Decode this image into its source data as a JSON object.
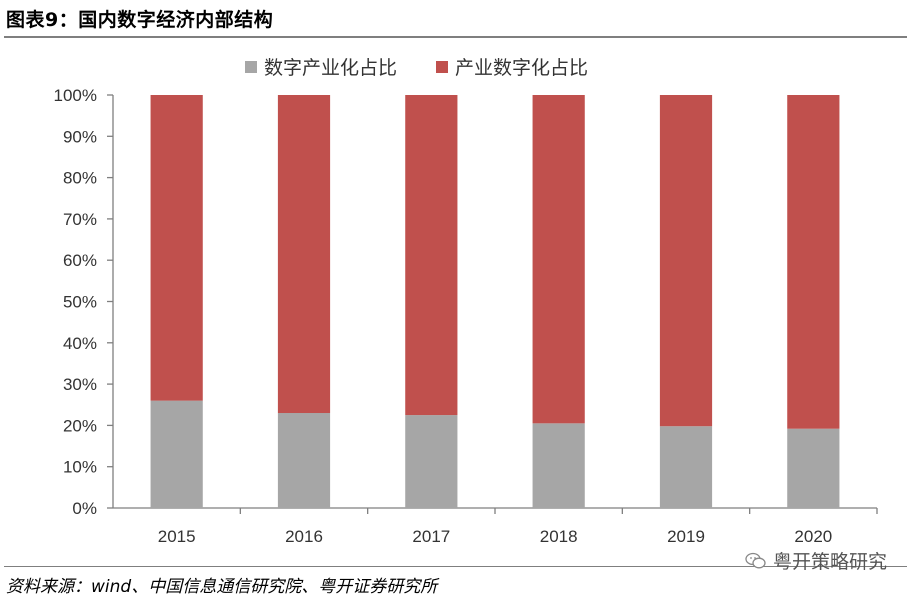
{
  "header": {
    "title": "图表9：国内数字经济内部结构"
  },
  "footer": {
    "source": "资料来源：wind、中国信息通信研究院、粤开证券研究所",
    "watermark": "粤开策略研究"
  },
  "chart_data": {
    "type": "bar",
    "stacked": true,
    "categories": [
      "2015",
      "2016",
      "2017",
      "2018",
      "2019",
      "2020"
    ],
    "series": [
      {
        "name": "数字产业化占比",
        "color": "#a6a6a6",
        "values": [
          0.26,
          0.23,
          0.225,
          0.205,
          0.198,
          0.192
        ]
      },
      {
        "name": "产业数字化占比",
        "color": "#c0504d",
        "values": [
          0.74,
          0.77,
          0.775,
          0.795,
          0.802,
          0.808
        ]
      }
    ],
    "y_ticks": [
      "0%",
      "10%",
      "20%",
      "30%",
      "40%",
      "50%",
      "60%",
      "70%",
      "80%",
      "90%",
      "100%"
    ],
    "ylim": [
      0,
      1
    ],
    "legend_position": "top-center",
    "grid": false
  }
}
